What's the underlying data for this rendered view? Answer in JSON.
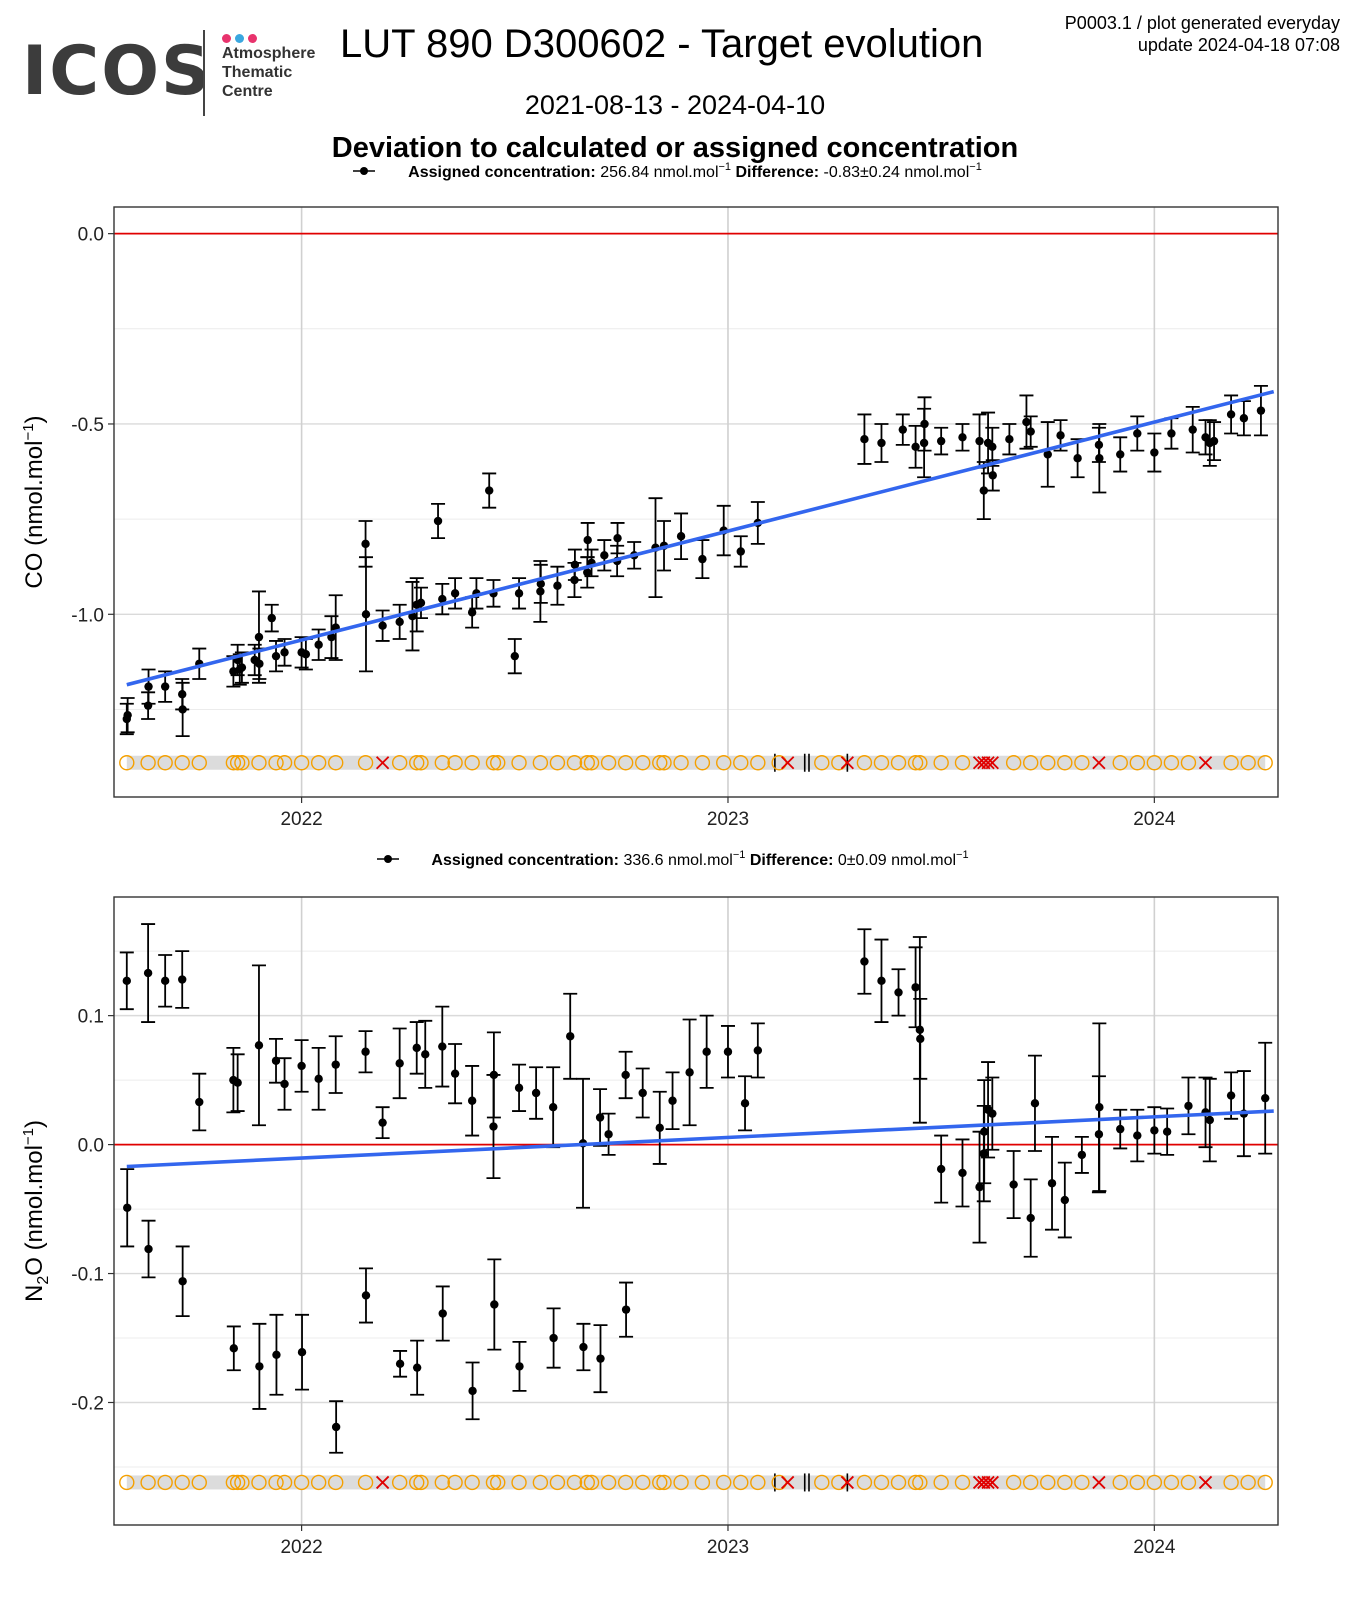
{
  "header": {
    "logo_text": "ICOS",
    "logo_sub": [
      "Atmosphere",
      "Thematic",
      "Centre"
    ],
    "logo_dot_colors": [
      "#e8336d",
      "#3aa7df",
      "#e8336d"
    ],
    "title": "LUT 890 D300602 - Target evolution",
    "date_range": "2021-08-13 - 2024-04-10",
    "meta_line1": "P0003.1 / plot generated everyday",
    "meta_line2": "update  2024-04-18 07:08",
    "subtitle": "Deviation to calculated or assigned concentration"
  },
  "colors": {
    "points": "#000000",
    "trend": "#3366ee",
    "reference": "#e00000",
    "flag_ok": "#f5a000",
    "flag_bad": "#e00000",
    "flag_band": "#dcdcdc",
    "grid": "#d9d9d9"
  },
  "chart_data": [
    {
      "type": "scatter",
      "legend_label": "Assigned concentration:",
      "legend_value": "256.84 nmol.mol",
      "legend_diff_label": "Difference:",
      "legend_diff_value": "-0.83±0.24 nmol.mol",
      "ylabel": "CO (nmol.mol",
      "xlim": [
        2021.56,
        2024.29
      ],
      "ylim": [
        -1.48,
        0.07
      ],
      "yticks": [
        -1.0,
        -0.5,
        0.0
      ],
      "ytick_labels": [
        "-1.0",
        "-0.5",
        "0.0"
      ],
      "xticks": [
        2022,
        2023,
        2024
      ],
      "xtick_labels": [
        "2022",
        "2023",
        "2024"
      ],
      "reference_line": 0,
      "flag_level": -1.39,
      "trend": [
        [
          2021.59,
          -1.185
        ],
        [
          2024.28,
          -0.415
        ]
      ],
      "points": [
        [
          2021.59,
          -1.275,
          0.04
        ],
        [
          2021.592,
          -1.265,
          0.045
        ],
        [
          2021.64,
          -1.24,
          0.035
        ],
        [
          2021.641,
          -1.19,
          0.045
        ],
        [
          2021.68,
          -1.19,
          0.04
        ],
        [
          2021.72,
          -1.21,
          0.04
        ],
        [
          2021.721,
          -1.25,
          0.07
        ],
        [
          2021.76,
          -1.13,
          0.04
        ],
        [
          2021.84,
          -1.15,
          0.04
        ],
        [
          2021.85,
          -1.12,
          0.04
        ],
        [
          2021.855,
          -1.145,
          0.04
        ],
        [
          2021.86,
          -1.14,
          0.04
        ],
        [
          2021.89,
          -1.12,
          0.04
        ],
        [
          2021.9,
          -1.06,
          0.12
        ],
        [
          2021.901,
          -1.13,
          0.04
        ],
        [
          2021.93,
          -1.01,
          0.035
        ],
        [
          2021.94,
          -1.11,
          0.04
        ],
        [
          2021.96,
          -1.1,
          0.035
        ],
        [
          2022.0,
          -1.1,
          0.04
        ],
        [
          2022.01,
          -1.105,
          0.04
        ],
        [
          2022.04,
          -1.08,
          0.04
        ],
        [
          2022.07,
          -1.06,
          0.055
        ],
        [
          2022.08,
          -1.035,
          0.085
        ],
        [
          2022.15,
          -0.815,
          0.06
        ],
        [
          2022.151,
          -1.0,
          0.15
        ],
        [
          2022.19,
          -1.03,
          0.04
        ],
        [
          2022.23,
          -1.02,
          0.045
        ],
        [
          2022.26,
          -1.005,
          0.09
        ],
        [
          2022.27,
          -0.975,
          0.07
        ],
        [
          2022.28,
          -0.97,
          0.04
        ],
        [
          2022.32,
          -0.755,
          0.045
        ],
        [
          2022.33,
          -0.96,
          0.04
        ],
        [
          2022.36,
          -0.945,
          0.04
        ],
        [
          2022.4,
          -0.995,
          0.04
        ],
        [
          2022.41,
          -0.945,
          0.04
        ],
        [
          2022.44,
          -0.675,
          0.045
        ],
        [
          2022.45,
          -0.945,
          0.035
        ],
        [
          2022.5,
          -1.11,
          0.045
        ],
        [
          2022.51,
          -0.945,
          0.04
        ],
        [
          2022.56,
          -0.94,
          0.08
        ],
        [
          2022.561,
          -0.92,
          0.05
        ],
        [
          2022.6,
          -0.925,
          0.05
        ],
        [
          2022.64,
          -0.91,
          0.045
        ],
        [
          2022.641,
          -0.87,
          0.04
        ],
        [
          2022.67,
          -0.89,
          0.04
        ],
        [
          2022.671,
          -0.805,
          0.045
        ],
        [
          2022.68,
          -0.865,
          0.035
        ],
        [
          2022.71,
          -0.845,
          0.04
        ],
        [
          2022.74,
          -0.86,
          0.04
        ],
        [
          2022.741,
          -0.8,
          0.04
        ],
        [
          2022.78,
          -0.845,
          0.035
        ],
        [
          2022.83,
          -0.825,
          0.13
        ],
        [
          2022.85,
          -0.82,
          0.065
        ],
        [
          2022.89,
          -0.795,
          0.06
        ],
        [
          2022.94,
          -0.855,
          0.05
        ],
        [
          2022.99,
          -0.78,
          0.065
        ],
        [
          2023.03,
          -0.835,
          0.04
        ],
        [
          2023.07,
          -0.76,
          0.055
        ],
        [
          2023.32,
          -0.54,
          0.065
        ],
        [
          2023.36,
          -0.55,
          0.05
        ],
        [
          2023.41,
          -0.515,
          0.04
        ],
        [
          2023.44,
          -0.56,
          0.055
        ],
        [
          2023.46,
          -0.55,
          0.09
        ],
        [
          2023.461,
          -0.5,
          0.07
        ],
        [
          2023.5,
          -0.545,
          0.035
        ],
        [
          2023.55,
          -0.535,
          0.035
        ],
        [
          2023.59,
          -0.545,
          0.07
        ],
        [
          2023.6,
          -0.675,
          0.075
        ],
        [
          2023.61,
          -0.55,
          0.08
        ],
        [
          2023.62,
          -0.56,
          0.05
        ],
        [
          2023.621,
          -0.635,
          0.04
        ],
        [
          2023.66,
          -0.54,
          0.04
        ],
        [
          2023.7,
          -0.495,
          0.07
        ],
        [
          2023.71,
          -0.52,
          0.04
        ],
        [
          2023.75,
          -0.58,
          0.085
        ],
        [
          2023.78,
          -0.53,
          0.04
        ],
        [
          2023.82,
          -0.59,
          0.05
        ],
        [
          2023.87,
          -0.555,
          0.045
        ],
        [
          2023.871,
          -0.59,
          0.09
        ],
        [
          2023.92,
          -0.58,
          0.045
        ],
        [
          2023.96,
          -0.525,
          0.045
        ],
        [
          2024.0,
          -0.575,
          0.05
        ],
        [
          2024.04,
          -0.525,
          0.04
        ],
        [
          2024.09,
          -0.515,
          0.06
        ],
        [
          2024.12,
          -0.535,
          0.045
        ],
        [
          2024.13,
          -0.55,
          0.06
        ],
        [
          2024.14,
          -0.545,
          0.05
        ],
        [
          2024.18,
          -0.475,
          0.05
        ],
        [
          2024.21,
          -0.485,
          0.045
        ],
        [
          2024.25,
          -0.465,
          0.065
        ]
      ]
    },
    {
      "type": "scatter",
      "legend_label": "Assigned concentration:",
      "legend_value": "336.6 nmol.mol",
      "legend_diff_label": "Difference:",
      "legend_diff_value": "0±0.09 nmol.mol",
      "ylabel": "N",
      "ylabel_sub": "2",
      "ylabel_rest": "O (nmol.mol",
      "xlim": [
        2021.56,
        2024.29
      ],
      "ylim": [
        -0.295,
        0.192
      ],
      "yticks": [
        -0.2,
        -0.1,
        0.0,
        0.1
      ],
      "ytick_labels": [
        "-0.2",
        "-0.1",
        "0.0",
        "0.1"
      ],
      "xticks": [
        2022,
        2023,
        2024
      ],
      "xtick_labels": [
        "2022",
        "2023",
        "2024"
      ],
      "reference_line": 0,
      "flag_level": -0.262,
      "trend": [
        [
          2021.59,
          -0.017
        ],
        [
          2024.28,
          0.026
        ]
      ],
      "points": [
        [
          2021.59,
          0.127,
          0.022
        ],
        [
          2021.591,
          -0.049,
          0.03
        ],
        [
          2021.64,
          0.133,
          0.038
        ],
        [
          2021.641,
          -0.081,
          0.022
        ],
        [
          2021.68,
          0.127,
          0.02
        ],
        [
          2021.72,
          0.128,
          0.022
        ],
        [
          2021.721,
          -0.106,
          0.027
        ],
        [
          2021.76,
          0.033,
          0.022
        ],
        [
          2021.84,
          0.05,
          0.025
        ],
        [
          2021.841,
          -0.158,
          0.017
        ],
        [
          2021.85,
          0.048,
          0.022
        ],
        [
          2021.9,
          0.077,
          0.062
        ],
        [
          2021.901,
          -0.172,
          0.033
        ],
        [
          2021.94,
          0.065,
          0.017
        ],
        [
          2021.941,
          -0.163,
          0.031
        ],
        [
          2021.96,
          0.047,
          0.02
        ],
        [
          2022.0,
          0.061,
          0.02
        ],
        [
          2022.001,
          -0.161,
          0.029
        ],
        [
          2022.04,
          0.051,
          0.024
        ],
        [
          2022.08,
          0.062,
          0.022
        ],
        [
          2022.081,
          -0.219,
          0.02
        ],
        [
          2022.15,
          0.072,
          0.016
        ],
        [
          2022.151,
          -0.117,
          0.021
        ],
        [
          2022.19,
          0.017,
          0.012
        ],
        [
          2022.23,
          0.063,
          0.027
        ],
        [
          2022.231,
          -0.17,
          0.01
        ],
        [
          2022.27,
          0.075,
          0.02
        ],
        [
          2022.271,
          -0.173,
          0.021
        ],
        [
          2022.29,
          0.07,
          0.026
        ],
        [
          2022.33,
          0.076,
          0.031
        ],
        [
          2022.331,
          -0.131,
          0.021
        ],
        [
          2022.36,
          0.055,
          0.023
        ],
        [
          2022.4,
          0.034,
          0.027
        ],
        [
          2022.401,
          -0.191,
          0.022
        ],
        [
          2022.45,
          0.014,
          0.04
        ],
        [
          2022.451,
          0.054,
          0.033
        ],
        [
          2022.452,
          -0.124,
          0.035
        ],
        [
          2022.51,
          0.044,
          0.018
        ],
        [
          2022.511,
          -0.172,
          0.019
        ],
        [
          2022.55,
          0.04,
          0.02
        ],
        [
          2022.59,
          0.029,
          0.031
        ],
        [
          2022.591,
          -0.15,
          0.023
        ],
        [
          2022.63,
          0.084,
          0.033
        ],
        [
          2022.66,
          0.001,
          0.05
        ],
        [
          2022.661,
          -0.157,
          0.018
        ],
        [
          2022.7,
          0.021,
          0.022
        ],
        [
          2022.701,
          -0.166,
          0.026
        ],
        [
          2022.72,
          0.008,
          0.016
        ],
        [
          2022.76,
          0.054,
          0.018
        ],
        [
          2022.761,
          -0.128,
          0.021
        ],
        [
          2022.8,
          0.04,
          0.019
        ],
        [
          2022.84,
          0.013,
          0.028
        ],
        [
          2022.87,
          0.034,
          0.022
        ],
        [
          2022.91,
          0.056,
          0.041
        ],
        [
          2022.95,
          0.072,
          0.028
        ],
        [
          2023.0,
          0.072,
          0.02
        ],
        [
          2023.04,
          0.032,
          0.021
        ],
        [
          2023.07,
          0.073,
          0.021
        ],
        [
          2023.32,
          0.142,
          0.025
        ],
        [
          2023.36,
          0.127,
          0.032
        ],
        [
          2023.4,
          0.118,
          0.018
        ],
        [
          2023.44,
          0.122,
          0.031
        ],
        [
          2023.45,
          0.089,
          0.072
        ],
        [
          2023.451,
          0.082,
          0.031
        ],
        [
          2023.5,
          -0.019,
          0.026
        ],
        [
          2023.55,
          -0.022,
          0.026
        ],
        [
          2023.59,
          -0.033,
          0.043
        ],
        [
          2023.6,
          -0.007,
          0.037
        ],
        [
          2023.601,
          0.01,
          0.04
        ],
        [
          2023.61,
          0.027,
          0.037
        ],
        [
          2023.62,
          0.024,
          0.028
        ],
        [
          2023.67,
          -0.031,
          0.026
        ],
        [
          2023.71,
          -0.057,
          0.03
        ],
        [
          2023.72,
          0.032,
          0.037
        ],
        [
          2023.76,
          -0.03,
          0.036
        ],
        [
          2023.79,
          -0.043,
          0.029
        ],
        [
          2023.83,
          -0.008,
          0.014
        ],
        [
          2023.87,
          0.008,
          0.045
        ],
        [
          2023.871,
          0.029,
          0.065
        ],
        [
          2023.92,
          0.012,
          0.015
        ],
        [
          2023.96,
          0.007,
          0.02
        ],
        [
          2024.0,
          0.011,
          0.018
        ],
        [
          2024.03,
          0.01,
          0.018
        ],
        [
          2024.08,
          0.03,
          0.022
        ],
        [
          2024.12,
          0.025,
          0.027
        ],
        [
          2024.13,
          0.019,
          0.032
        ],
        [
          2024.18,
          0.038,
          0.018
        ],
        [
          2024.21,
          0.024,
          0.033
        ],
        [
          2024.26,
          0.036,
          0.043
        ]
      ]
    }
  ],
  "flags": {
    "ok": [
      2021.59,
      2021.64,
      2021.68,
      2021.72,
      2021.76,
      2021.84,
      2021.85,
      2021.86,
      2021.9,
      2021.94,
      2021.96,
      2022.0,
      2022.04,
      2022.08,
      2022.15,
      2022.23,
      2022.27,
      2022.28,
      2022.33,
      2022.36,
      2022.4,
      2022.45,
      2022.46,
      2022.51,
      2022.56,
      2022.6,
      2022.64,
      2022.67,
      2022.68,
      2022.72,
      2022.76,
      2022.8,
      2022.84,
      2022.85,
      2022.89,
      2022.94,
      2022.99,
      2023.03,
      2023.07,
      2023.12,
      2023.22,
      2023.26,
      2023.32,
      2023.36,
      2023.4,
      2023.44,
      2023.45,
      2023.5,
      2023.55,
      2023.67,
      2023.71,
      2023.75,
      2023.79,
      2023.83,
      2023.92,
      2023.96,
      2024.0,
      2024.04,
      2024.08,
      2024.18,
      2024.22,
      2024.26
    ],
    "bad": [
      2022.19,
      2023.14,
      2023.28,
      2023.59,
      2023.6,
      2023.61,
      2023.62,
      2023.87,
      2024.12
    ],
    "black_marks": [
      2023.11,
      2023.18,
      2023.19,
      2023.28
    ]
  }
}
